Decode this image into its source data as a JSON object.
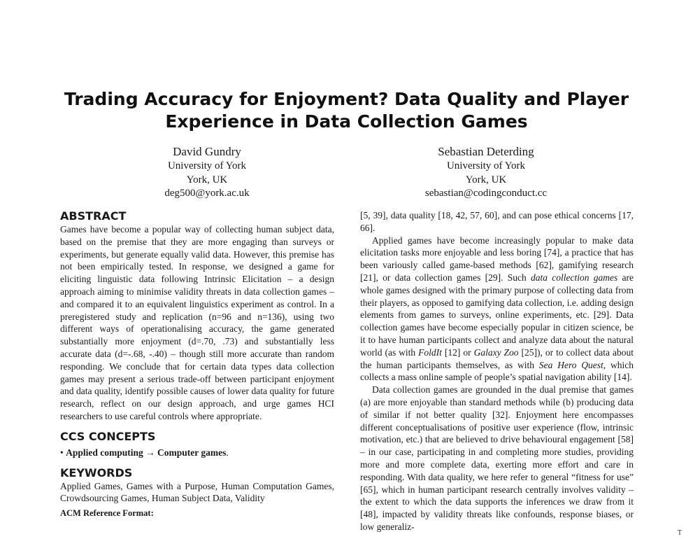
{
  "title": {
    "line1": "Trading Accuracy for Enjoyment? Data Quality and Player",
    "line2": "Experience in Data Collection Games"
  },
  "authors": [
    {
      "name": "David Gundry",
      "affiliation": "University of York",
      "location": "York, UK",
      "email": "deg500@york.ac.uk"
    },
    {
      "name": "Sebastian Deterding",
      "affiliation": "University of York",
      "location": "York, UK",
      "email": "sebastian@codingconduct.cc"
    }
  ],
  "abstract": {
    "heading": "ABSTRACT",
    "text": "Games have become a popular way of collecting human subject data, based on the premise that they are more engaging than surveys or experiments, but generate equally valid data. However, this premise has not been empirically tested. In response, we designed a game for eliciting linguistic data following Intrinsic Elicitation – a design approach aiming to minimise validity threats in data collection games – and compared it to an equivalent linguistics experiment as control. In a preregistered study and replication (n=96 and n=136), using two different ways of operationalising accuracy, the game generated substantially more enjoyment (d=.70, .73) and substantially less accurate data (d=-.68, -.40) – though still more accurate than random responding. We conclude that for certain data types data collection games may present a serious trade-off between participant enjoyment and data quality, identify possible causes of lower data quality for future research, reflect on our design approach, and urge games HCI researchers to use careful controls where appropriate."
  },
  "ccs": {
    "heading": "CCS CONCEPTS",
    "bullet": "•",
    "item": "Applied computing → Computer games",
    "end": "."
  },
  "keywords": {
    "heading": "KEYWORDS",
    "text": "Applied Games, Games with a Purpose, Human Computation Games, Crowdsourcing Games, Human Subject Data, Validity"
  },
  "acm_ref": "ACM Reference Format:",
  "right_column": {
    "p1": "[5, 39], data quality [18, 42, 57, 60], and can pose ethical concerns [17, 66].",
    "p2": {
      "a": "Applied games have become increasingly popular to make data elicitation tasks more enjoyable and less boring [74], a practice that has been variously called game-based methods [62], gamifying research [21], or data collection games [29]. Such ",
      "em1": "data collection games",
      "b": " are whole games designed with the primary purpose of collecting data from their players, as opposed to gamifying data collection, i.e. adding design elements from games to surveys, online experiments, etc. [29]. Data collection games have become especially popular in citizen science, be it to have human participants collect and analyze data about the natural world (as with ",
      "em2": "FoldIt",
      "c": " [12] or ",
      "em3": "Galaxy Zoo",
      "d": " [25]), or to collect data about the human participants themselves, as with ",
      "em4": "Sea Hero Quest",
      "e": ", which collects a mass online sample of people’s spatial navigation ability [14]."
    },
    "p3": "Data collection games are grounded in the dual premise that games (a) are more enjoyable than standard methods while (b) producing data of similar if not better quality [32]. Enjoyment here encompasses different conceptualisations of positive user experience (flow, intrinsic motivation, etc.) that are believed to drive behavioural engagement [58] – in our case, participating in and completing more studies, providing more and more complete data, exerting more effort and care in responding. With data quality, we here refer to general “fitness for use” [65], which in human participant research centrally involves validity – the extent to which the data supports the inferences we draw from it [48], impacted by validity threats like confounds, response biases, or low generaliz-"
  },
  "corner_mark": "T"
}
